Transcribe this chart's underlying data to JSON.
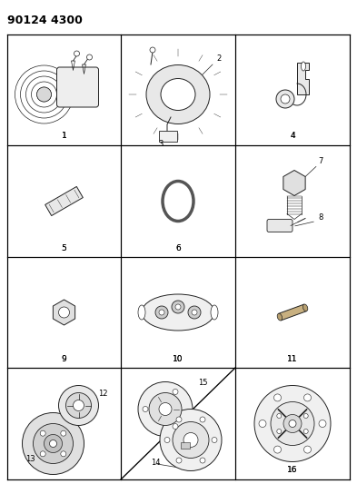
{
  "title": "90124 4300",
  "bg_color": "#ffffff",
  "grid_color": "#000000",
  "grid_linewidth": 0.8,
  "fig_width": 3.93,
  "fig_height": 5.33,
  "dpi": 100,
  "title_fontsize": 9,
  "title_fontweight": "bold",
  "label_fontsize": 6.5,
  "annot_fontsize": 6,
  "lc": "#222222",
  "lw": 0.7
}
